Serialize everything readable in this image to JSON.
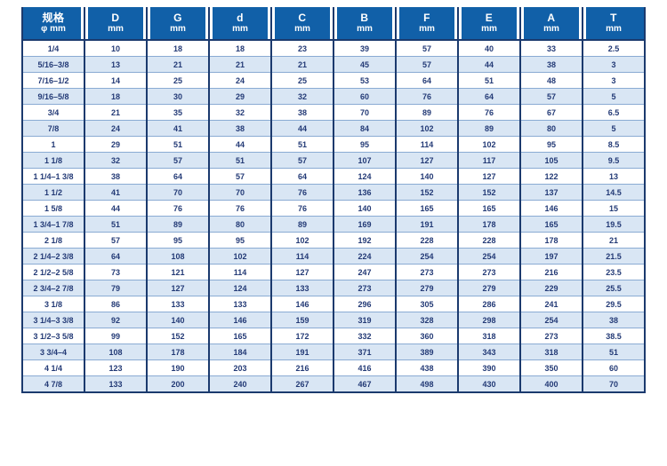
{
  "table": {
    "header": {
      "spec_label": "规格",
      "spec_sub": "φ mm",
      "columns": [
        {
          "letter": "D",
          "unit": "mm"
        },
        {
          "letter": "G",
          "unit": "mm"
        },
        {
          "letter": "d",
          "unit": "mm"
        },
        {
          "letter": "C",
          "unit": "mm"
        },
        {
          "letter": "B",
          "unit": "mm"
        },
        {
          "letter": "F",
          "unit": "mm"
        },
        {
          "letter": "E",
          "unit": "mm"
        },
        {
          "letter": "A",
          "unit": "mm"
        },
        {
          "letter": "T",
          "unit": "mm"
        }
      ]
    },
    "rows": [
      [
        "1/4",
        "10",
        "18",
        "18",
        "23",
        "39",
        "57",
        "40",
        "33",
        "2.5"
      ],
      [
        "5/16–3/8",
        "13",
        "21",
        "21",
        "21",
        "45",
        "57",
        "44",
        "38",
        "3"
      ],
      [
        "7/16–1/2",
        "14",
        "25",
        "24",
        "25",
        "53",
        "64",
        "51",
        "48",
        "3"
      ],
      [
        "9/16–5/8",
        "18",
        "30",
        "29",
        "32",
        "60",
        "76",
        "64",
        "57",
        "5"
      ],
      [
        "3/4",
        "21",
        "35",
        "32",
        "38",
        "70",
        "89",
        "76",
        "67",
        "6.5"
      ],
      [
        "7/8",
        "24",
        "41",
        "38",
        "44",
        "84",
        "102",
        "89",
        "80",
        "5"
      ],
      [
        "1",
        "29",
        "51",
        "44",
        "51",
        "95",
        "114",
        "102",
        "95",
        "8.5"
      ],
      [
        "1 1/8",
        "32",
        "57",
        "51",
        "57",
        "107",
        "127",
        "117",
        "105",
        "9.5"
      ],
      [
        "1 1/4–1 3/8",
        "38",
        "64",
        "57",
        "64",
        "124",
        "140",
        "127",
        "122",
        "13"
      ],
      [
        "1 1/2",
        "41",
        "70",
        "70",
        "76",
        "136",
        "152",
        "152",
        "137",
        "14.5"
      ],
      [
        "1 5/8",
        "44",
        "76",
        "76",
        "76",
        "140",
        "165",
        "165",
        "146",
        "15"
      ],
      [
        "1 3/4–1 7/8",
        "51",
        "89",
        "80",
        "89",
        "169",
        "191",
        "178",
        "165",
        "19.5"
      ],
      [
        "2 1/8",
        "57",
        "95",
        "95",
        "102",
        "192",
        "228",
        "228",
        "178",
        "21"
      ],
      [
        "2 1/4–2 3/8",
        "64",
        "108",
        "102",
        "114",
        "224",
        "254",
        "254",
        "197",
        "21.5"
      ],
      [
        "2 1/2–2 5/8",
        "73",
        "121",
        "114",
        "127",
        "247",
        "273",
        "273",
        "216",
        "23.5"
      ],
      [
        "2 3/4–2 7/8",
        "79",
        "127",
        "124",
        "133",
        "273",
        "279",
        "279",
        "229",
        "25.5"
      ],
      [
        "3 1/8",
        "86",
        "133",
        "133",
        "146",
        "296",
        "305",
        "286",
        "241",
        "29.5"
      ],
      [
        "3 1/4–3 3/8",
        "92",
        "140",
        "146",
        "159",
        "319",
        "328",
        "298",
        "254",
        "38"
      ],
      [
        "3 1/2–3 5/8",
        "99",
        "152",
        "165",
        "172",
        "332",
        "360",
        "318",
        "273",
        "38.5"
      ],
      [
        "3 3/4–4",
        "108",
        "178",
        "184",
        "191",
        "371",
        "389",
        "343",
        "318",
        "51"
      ],
      [
        "4 1/4",
        "123",
        "190",
        "203",
        "216",
        "416",
        "438",
        "390",
        "350",
        "60"
      ],
      [
        "4 7/8",
        "133",
        "200",
        "240",
        "267",
        "467",
        "498",
        "430",
        "400",
        "70"
      ]
    ]
  },
  "colors": {
    "header_bg": "#1160a8",
    "separator_dark": "#1b3a6e",
    "row_alt_bg": "#d9e6f4",
    "row_line": "#8aabd3",
    "cell_text": "#233a76"
  }
}
